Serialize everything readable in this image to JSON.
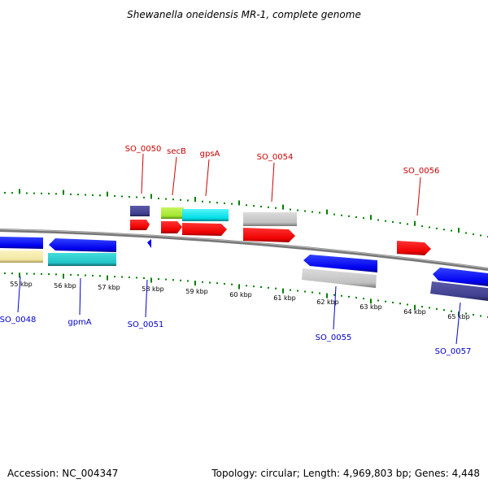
{
  "title": "Shewanella oneidensis MR-1, complete genome",
  "footer": {
    "accession": "Accession: NC_004347",
    "summary": "Topology: circular; Length: 4,969,803 bp; Genes: 4,448"
  },
  "colors": {
    "backbone": "#808080",
    "grid_ticks": "#008000",
    "top_labels": "#cc0000",
    "bottom_labels": "#0000cc",
    "red_feature": "#ff0000",
    "blue_feature": "#0000ff",
    "gray_feature": "#c0c0c0",
    "navy_feature": "#3f3f8f",
    "yellow_feature": "#f2e7a2",
    "cyan_feature": "#00e0e8",
    "green_feature": "#a0e830"
  },
  "scale": {
    "unit": "kbp",
    "ticks": [
      "55 kbp",
      "56 kbp",
      "57 kbp",
      "58 kbp",
      "59 kbp",
      "60 kbp",
      "61 kbp",
      "62 kbp",
      "63 kbp",
      "64 kbp",
      "65 kbp"
    ]
  },
  "top_labels": [
    "SO_0050",
    "secB",
    "gpsA",
    "SO_0054",
    "SO_0056"
  ],
  "bottom_labels": [
    "SO_0048",
    "gpmA",
    "SO_0051",
    "SO_0055",
    "SO_0057"
  ]
}
